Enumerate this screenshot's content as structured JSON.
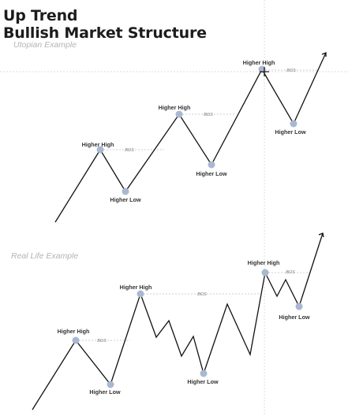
{
  "header": {
    "title_line1": "Up Trend",
    "title_line2": "Bullish Market Structure",
    "subtitle_utopian": "Utopian Example",
    "subtitle_real": "Real Life Example"
  },
  "labels": {
    "higher_high": "Higher High",
    "higher_low": "Higher Low",
    "bos": "BOS"
  },
  "colors": {
    "line": "#111111",
    "marker": "#a9b8d0",
    "dotted": "#bfbfbf",
    "title": "#1c1c1c"
  }
}
